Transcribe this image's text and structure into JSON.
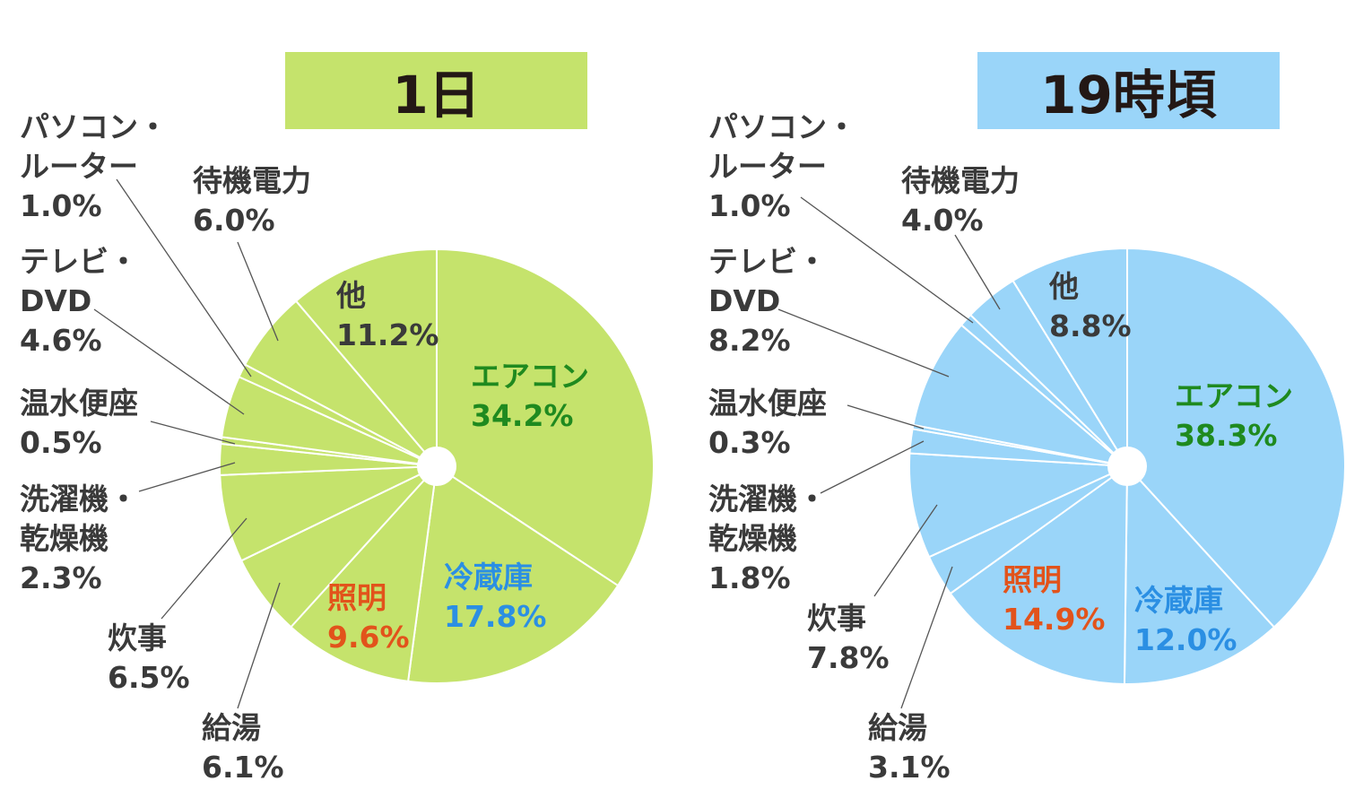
{
  "chart_data": [
    {
      "type": "pie",
      "title": "1日",
      "color": "#c5e36c",
      "slices": [
        {
          "name": "エアコン",
          "value": 34.2,
          "label_color": "#1f8a1f"
        },
        {
          "name": "冷蔵庫",
          "value": 17.8,
          "label_color": "#2b8fe3"
        },
        {
          "name": "照明",
          "value": 9.6,
          "label_color": "#e2531b"
        },
        {
          "name": "給湯",
          "value": 6.1
        },
        {
          "name": "炊事",
          "value": 6.5
        },
        {
          "name": "洗濯機・乾燥機",
          "value": 2.3
        },
        {
          "name": "温水便座",
          "value": 0.5
        },
        {
          "name": "テレビ・DVD",
          "value": 4.6
        },
        {
          "name": "パソコン・ルーター",
          "value": 1.0
        },
        {
          "name": "待機電力",
          "value": 6.0
        },
        {
          "name": "他",
          "value": 11.2
        }
      ]
    },
    {
      "type": "pie",
      "title": "19時頃",
      "color": "#9ad5f9",
      "slices": [
        {
          "name": "エアコン",
          "value": 38.3,
          "label_color": "#1f8a1f"
        },
        {
          "name": "冷蔵庫",
          "value": 12.0,
          "label_color": "#2b8fe3"
        },
        {
          "name": "照明",
          "value": 14.9,
          "label_color": "#e2531b"
        },
        {
          "name": "給湯",
          "value": 3.1
        },
        {
          "name": "炊事",
          "value": 7.8
        },
        {
          "name": "洗濯機・乾燥機",
          "value": 1.8
        },
        {
          "name": "温水便座",
          "value": 0.3
        },
        {
          "name": "テレビ・DVD",
          "value": 8.2
        },
        {
          "name": "パソコン・ルーター",
          "value": 1.0
        },
        {
          "name": "待機電力",
          "value": 4.0
        },
        {
          "name": "他",
          "value": 8.8
        }
      ]
    }
  ],
  "labels": [
    {
      "aircon": [
        "エアコン",
        "34.2%"
      ],
      "fridge": [
        "冷蔵庫",
        "17.8%"
      ],
      "light": [
        "照明",
        "9.6%"
      ],
      "water": [
        "給湯",
        "6.1%"
      ],
      "cook": [
        "炊事",
        "6.5%"
      ],
      "wash": [
        "洗濯機・",
        "乾燥機",
        "2.3%"
      ],
      "toilet": [
        "温水便座",
        "0.5%"
      ],
      "tv": [
        "テレビ・",
        "DVD",
        "4.6%"
      ],
      "pc": [
        "パソコン・",
        "ルーター",
        "1.0%"
      ],
      "standby": [
        "待機電力",
        "6.0%"
      ],
      "other": [
        "他",
        "11.2%"
      ]
    },
    {
      "aircon": [
        "エアコン",
        "38.3%"
      ],
      "fridge": [
        "冷蔵庫",
        "12.0%"
      ],
      "light": [
        "照明",
        "14.9%"
      ],
      "water": [
        "給湯",
        "3.1%"
      ],
      "cook": [
        "炊事",
        "7.8%"
      ],
      "wash": [
        "洗濯機・",
        "乾燥機",
        "1.8%"
      ],
      "toilet": [
        "温水便座",
        "0.3%"
      ],
      "tv": [
        "テレビ・",
        "DVD",
        "8.2%"
      ],
      "pc": [
        "パソコン・",
        "ルーター",
        "1.0%"
      ],
      "standby": [
        "待機電力",
        "4.0%"
      ],
      "other": [
        "他",
        "8.8%"
      ]
    }
  ]
}
